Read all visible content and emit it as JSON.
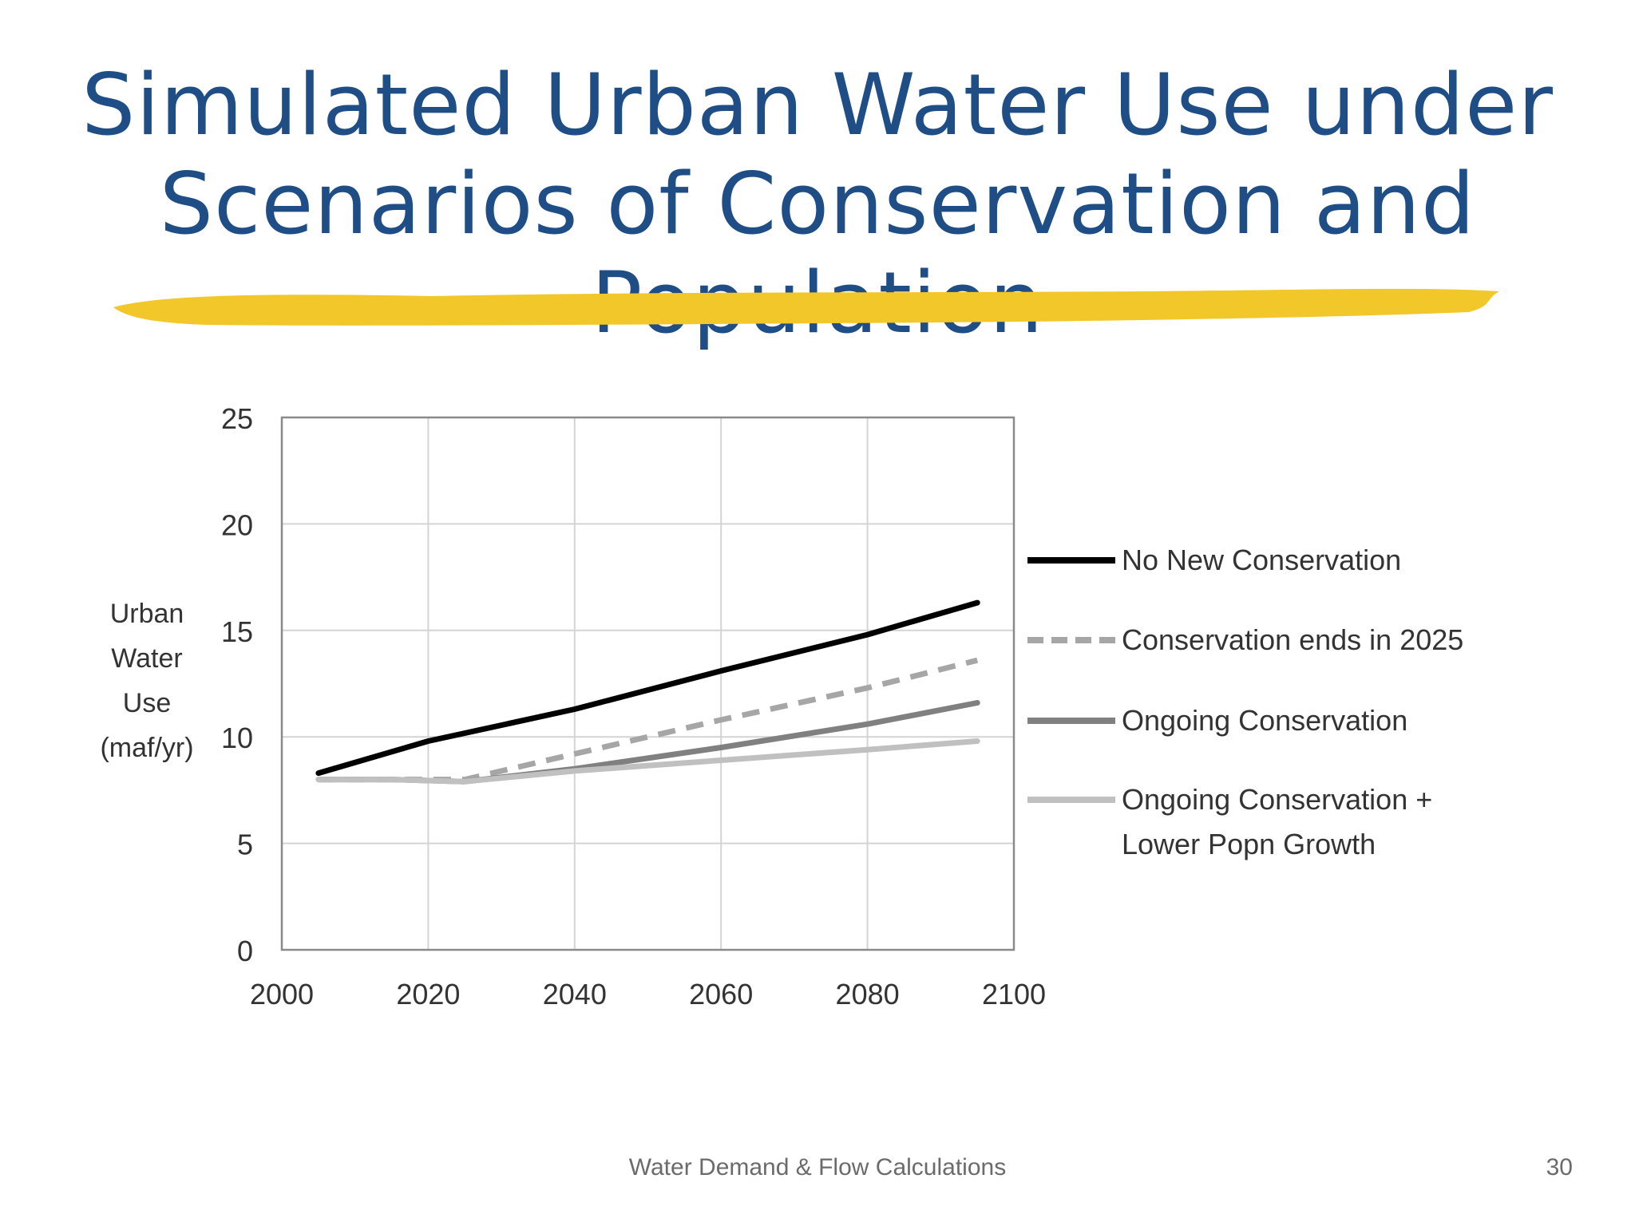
{
  "slide": {
    "title_line1": "Simulated Urban Water Use under",
    "title_line2": "Scenarios of Conservation and Population",
    "footer": "Water Demand & Flow Calculations",
    "page_number": "30",
    "title_color": "#1f4e87",
    "highlight_color": "#f2c72a"
  },
  "chart_data": {
    "type": "line",
    "title": "",
    "ylabel": [
      "Urban",
      "Water",
      "Use",
      "(maf/yr)"
    ],
    "xlabel": "",
    "xlim": [
      2000,
      2100
    ],
    "ylim": [
      0,
      25
    ],
    "xticks": [
      2000,
      2020,
      2040,
      2060,
      2080,
      2100
    ],
    "yticks": [
      0,
      5,
      10,
      15,
      20,
      25
    ],
    "grid": true,
    "legend_position": "right",
    "series": [
      {
        "name": "No New Conservation",
        "legend_lines": [
          "No New Conservation"
        ],
        "color": "#000000",
        "dash": "solid",
        "points": [
          [
            2005,
            8.3
          ],
          [
            2020,
            9.8
          ],
          [
            2040,
            11.3
          ],
          [
            2060,
            13.1
          ],
          [
            2080,
            14.8
          ],
          [
            2095,
            16.3
          ]
        ]
      },
      {
        "name": "Conservation ends in 2025",
        "legend_lines": [
          "Conservation ends in 2025"
        ],
        "color": "#a6a6a6",
        "dash": "dashed",
        "points": [
          [
            2005,
            8.0
          ],
          [
            2015,
            8.0
          ],
          [
            2025,
            8.0
          ],
          [
            2040,
            9.2
          ],
          [
            2060,
            10.8
          ],
          [
            2080,
            12.3
          ],
          [
            2095,
            13.6
          ]
        ]
      },
      {
        "name": "Ongoing Conservation",
        "legend_lines": [
          "Ongoing Conservation"
        ],
        "color": "#808080",
        "dash": "solid",
        "points": [
          [
            2005,
            8.0
          ],
          [
            2015,
            8.0
          ],
          [
            2025,
            7.9
          ],
          [
            2040,
            8.5
          ],
          [
            2060,
            9.5
          ],
          [
            2080,
            10.6
          ],
          [
            2095,
            11.6
          ]
        ]
      },
      {
        "name": "Ongoing Conservation + Lower Popn Growth",
        "legend_lines": [
          "Ongoing Conservation +",
          "Lower Popn Growth"
        ],
        "color": "#c0c0c0",
        "dash": "solid",
        "points": [
          [
            2005,
            8.0
          ],
          [
            2015,
            8.0
          ],
          [
            2025,
            7.9
          ],
          [
            2040,
            8.4
          ],
          [
            2060,
            8.9
          ],
          [
            2080,
            9.4
          ],
          [
            2095,
            9.8
          ]
        ]
      }
    ]
  }
}
